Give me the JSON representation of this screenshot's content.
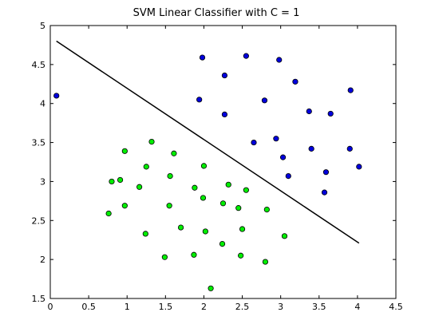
{
  "chart_data": {
    "type": "scatter",
    "title": "SVM Linear Classifier with C = 1",
    "xlim": [
      0,
      4.5
    ],
    "ylim": [
      1.5,
      5
    ],
    "xticks": [
      "0",
      "0.5",
      "1",
      "1.5",
      "2",
      "2.5",
      "3",
      "3.5",
      "4",
      "4.5"
    ],
    "yticks": [
      "1.5",
      "2",
      "2.5",
      "3",
      "3.5",
      "4",
      "4.5",
      "5"
    ],
    "grid": false,
    "colors": {
      "class_blue": "#0000dd",
      "class_green": "#00ee00",
      "boundary": "#000000"
    },
    "series": [
      {
        "class": "blue",
        "x": [
          0.08,
          1.98,
          2.27,
          2.55,
          2.98,
          1.94,
          2.27,
          2.79,
          3.19,
          3.37,
          3.65,
          3.91,
          2.65,
          2.94,
          3.03,
          3.4,
          3.9,
          3.1,
          3.59,
          4.02,
          3.57
        ],
        "y": [
          4.1,
          4.59,
          4.36,
          4.61,
          4.56,
          4.05,
          3.86,
          4.04,
          4.28,
          3.9,
          3.87,
          4.17,
          3.5,
          3.55,
          3.31,
          3.42,
          3.42,
          3.07,
          3.12,
          3.19,
          2.86
        ]
      },
      {
        "class": "green",
        "x": [
          0.97,
          1.32,
          1.61,
          1.25,
          2.0,
          0.8,
          0.91,
          1.16,
          1.56,
          1.88,
          2.32,
          2.55,
          0.76,
          0.97,
          1.55,
          1.99,
          2.25,
          2.45,
          2.82,
          1.24,
          1.7,
          2.02,
          2.5,
          3.05,
          1.49,
          1.87,
          2.24,
          2.48,
          2.8,
          2.09
        ],
        "y": [
          3.39,
          3.51,
          3.36,
          3.19,
          3.2,
          3.0,
          3.02,
          2.93,
          3.07,
          2.92,
          2.96,
          2.89,
          2.59,
          2.69,
          2.69,
          2.79,
          2.72,
          2.66,
          2.64,
          2.33,
          2.41,
          2.36,
          2.39,
          2.3,
          2.03,
          2.06,
          2.2,
          2.05,
          1.97,
          1.63
        ]
      }
    ],
    "decision_boundary": {
      "x": [
        0.08,
        4.02
      ],
      "y": [
        4.8,
        2.21
      ]
    }
  }
}
